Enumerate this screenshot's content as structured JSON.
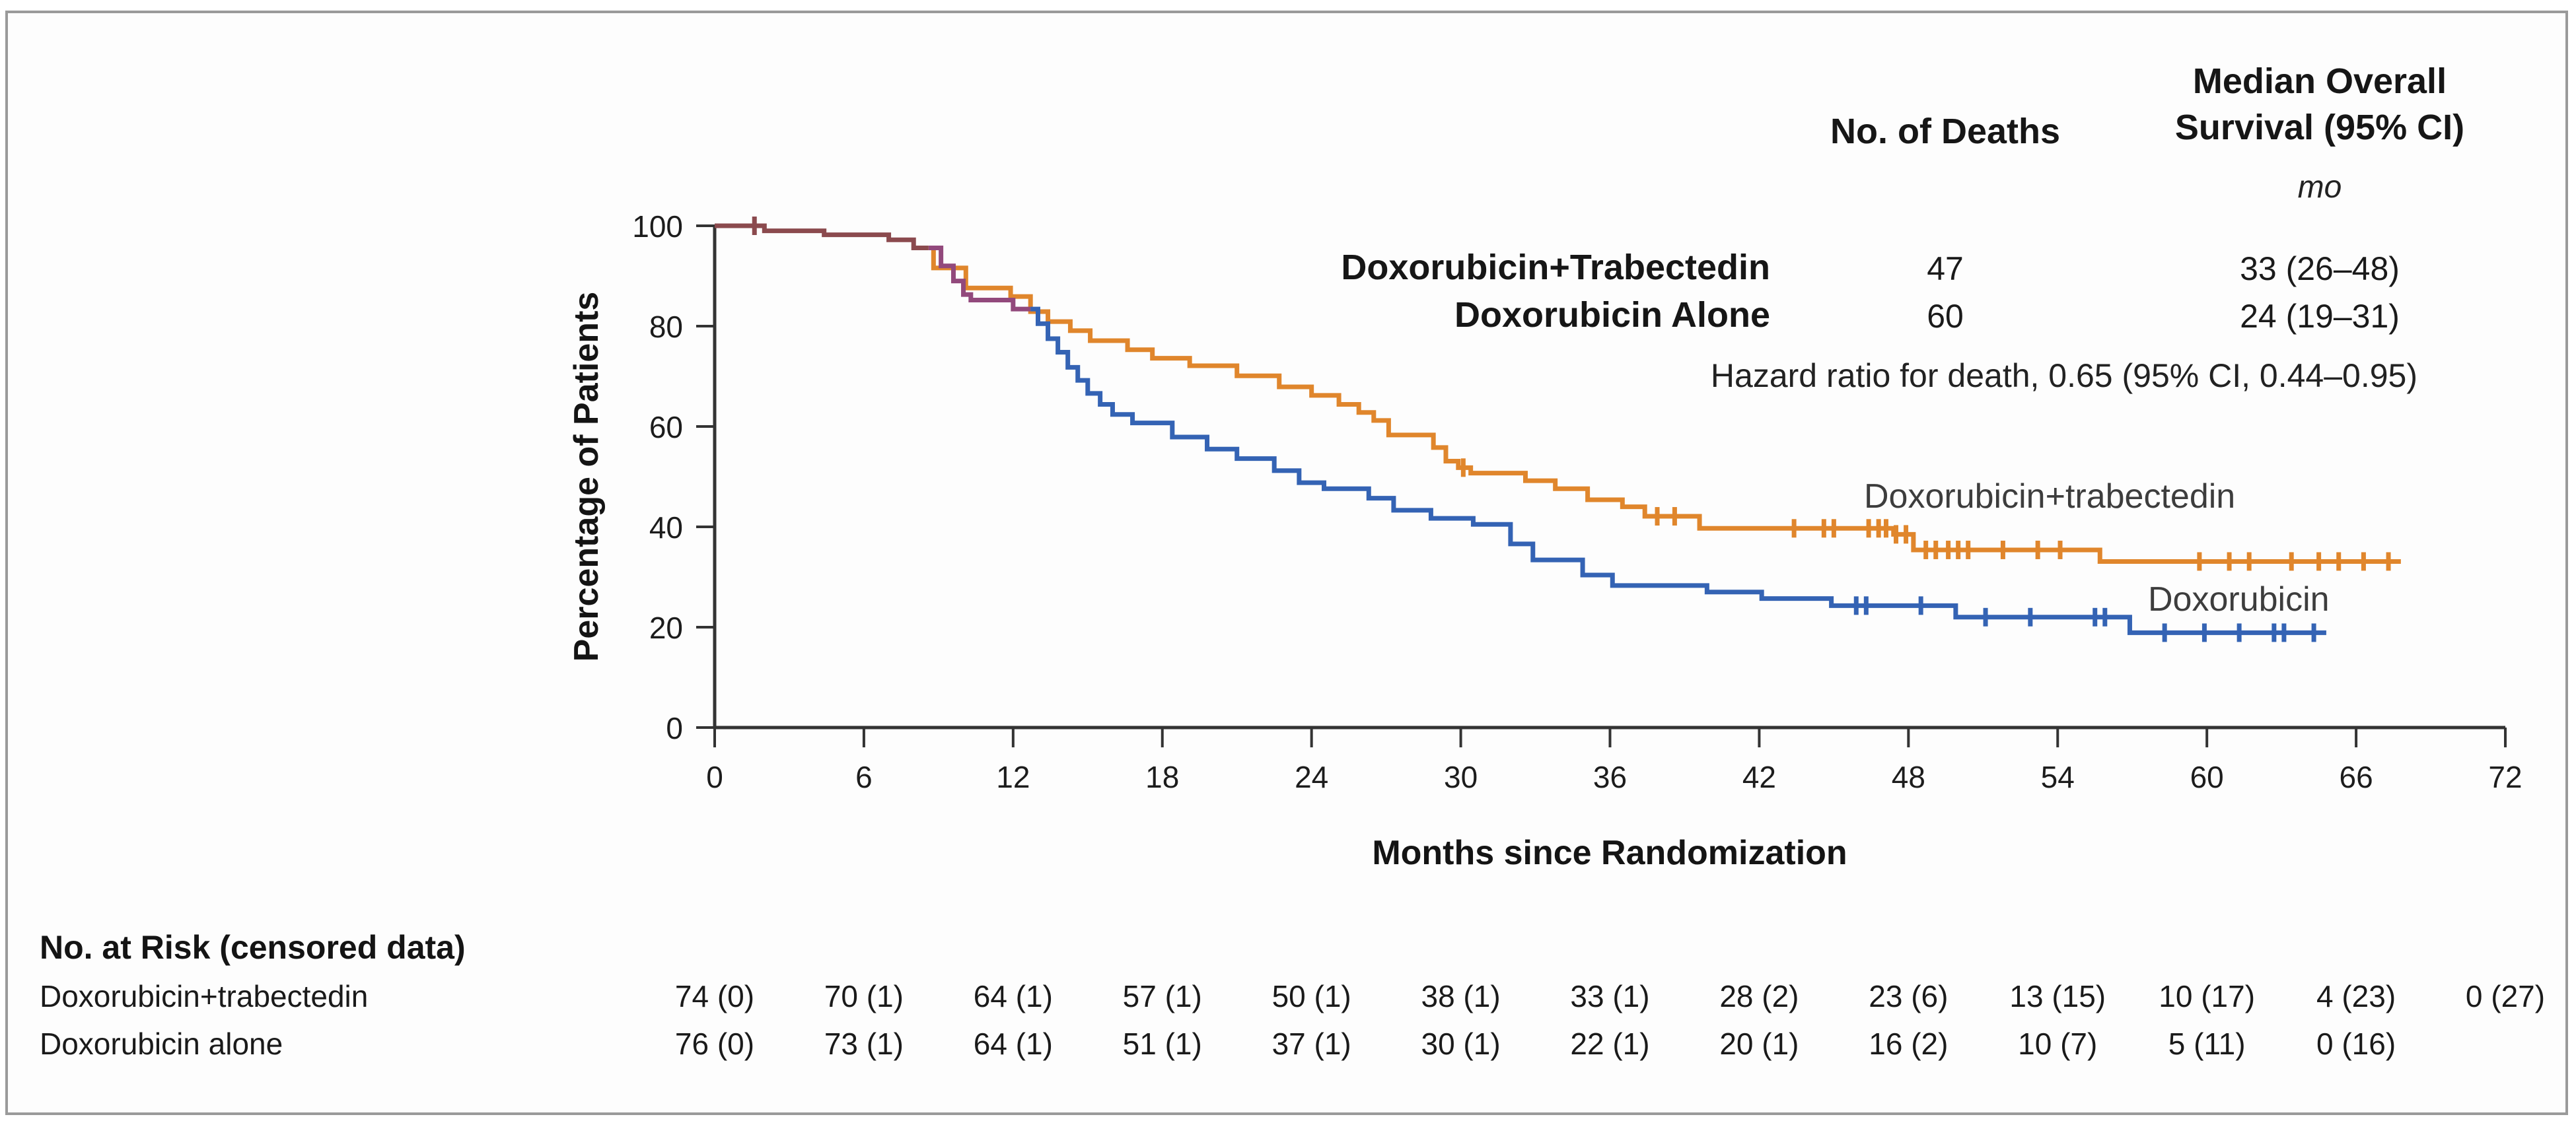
{
  "figure": {
    "header": {
      "deaths_col": "No. of Deaths",
      "median_col_line1": "Median Overall",
      "median_col_line2": "Survival (95% CI)",
      "median_unit": "mo"
    },
    "legend_rows": [
      {
        "label": "Doxorubicin+Trabectedin",
        "deaths": "47",
        "median": "33 (26–48)"
      },
      {
        "label": "Doxorubicin Alone",
        "deaths": "60",
        "median": "24 (19–31)"
      }
    ],
    "hazard_text": "Hazard ratio for death, 0.65 (95% CI, 0.44–0.95)",
    "curve_labels": {
      "trabectedin": "Doxorubicin+trabectedin",
      "doxorubicin": "Doxorubicin"
    }
  },
  "chart_data": {
    "type": "line",
    "subtype": "kaplan-meier-step",
    "title": "",
    "xlabel": "Months since Randomization",
    "ylabel": "Percentage of Patients",
    "xlim": [
      0,
      72
    ],
    "ylim": [
      0,
      100
    ],
    "x_ticks": [
      0,
      6,
      12,
      18,
      24,
      30,
      36,
      42,
      48,
      54,
      60,
      66,
      72
    ],
    "y_ticks": [
      0,
      20,
      40,
      60,
      80,
      100
    ],
    "grid": false,
    "note": "Both curves overlap from month 0 to ~8.6 (drawn as one dark line); censor marks shown as ticks on curves",
    "axis_color": "#333333",
    "series": [
      {
        "name": "Doxorubicin+trabectedin",
        "color": "#E0862C",
        "segments": [
          {
            "color": "#8B4A4E",
            "points": [
              [
                0,
                100
              ],
              [
                2,
                99
              ],
              [
                4.4,
                98.2
              ],
              [
                7,
                97.2
              ],
              [
                8,
                95.6
              ],
              [
                8.6,
                95.6
              ]
            ]
          },
          {
            "color": "#E0862C",
            "points": [
              [
                8.6,
                95.6
              ],
              [
                8.8,
                91.6
              ],
              [
                10.1,
                87.6
              ],
              [
                11.9,
                85.9
              ],
              [
                12.7,
                82.9
              ],
              [
                13.4,
                80.9
              ],
              [
                14.3,
                79.1
              ],
              [
                15.1,
                77.1
              ],
              [
                16.6,
                75.3
              ],
              [
                17.6,
                73.6
              ],
              [
                19.1,
                72.1
              ],
              [
                21,
                70.1
              ],
              [
                22.7,
                67.9
              ],
              [
                24,
                66.2
              ],
              [
                25.1,
                64.4
              ],
              [
                25.9,
                62.8
              ],
              [
                26.5,
                61.2
              ],
              [
                27.1,
                58.3
              ],
              [
                28.9,
                55.8
              ],
              [
                29.4,
                53.1
              ],
              [
                29.9,
                51.8
              ],
              [
                30.4,
                50.7
              ],
              [
                32.6,
                49.2
              ],
              [
                33.8,
                47.6
              ],
              [
                35.1,
                45.4
              ],
              [
                36.5,
                44
              ],
              [
                37.4,
                42.1
              ],
              [
                39.6,
                39.7
              ],
              [
                47.4,
                38.5
              ],
              [
                48.2,
                35.4
              ],
              [
                55.7,
                33.1
              ],
              [
                67.8,
                33.1
              ]
            ]
          }
        ],
        "censor_months": [
          1.6,
          30.1,
          37.9,
          38.6,
          43.4,
          44.6,
          45,
          46.4,
          46.8,
          47.1,
          47.5,
          47.9,
          48.7,
          49.1,
          49.6,
          50,
          50.4,
          51.8,
          53.2,
          54.1,
          59.7,
          60.9,
          61.7,
          63.4,
          64.5,
          65.3,
          66.3,
          67.3
        ]
      },
      {
        "name": "Doxorubicin alone",
        "color": "#3463B4",
        "segments": [
          {
            "color": "#92497C",
            "points": [
              [
                8.6,
                95.6
              ],
              [
                9.1,
                92
              ],
              [
                9.6,
                89
              ],
              [
                10,
                86.3
              ],
              [
                10.3,
                85.2
              ],
              [
                12,
                83.4
              ],
              [
                12.7,
                83.4
              ]
            ]
          },
          {
            "color": "#3463B4",
            "points": [
              [
                12.7,
                83.4
              ],
              [
                13,
                80.5
              ],
              [
                13.4,
                77.5
              ],
              [
                13.8,
                74.8
              ],
              [
                14.2,
                71.8
              ],
              [
                14.6,
                69.2
              ],
              [
                15,
                66.6
              ],
              [
                15.5,
                64.4
              ],
              [
                16,
                62.4
              ],
              [
                16.8,
                60.7
              ],
              [
                18.4,
                57.9
              ],
              [
                19.8,
                55.5
              ],
              [
                21,
                53.6
              ],
              [
                22.5,
                51.2
              ],
              [
                23.5,
                48.8
              ],
              [
                24.5,
                47.6
              ],
              [
                26.3,
                45.7
              ],
              [
                27.3,
                43.3
              ],
              [
                28.8,
                41.7
              ],
              [
                30.5,
                40.5
              ],
              [
                32,
                36.6
              ],
              [
                32.9,
                33.4
              ],
              [
                34.9,
                30.4
              ],
              [
                36.1,
                28.3
              ],
              [
                39.9,
                27
              ],
              [
                42.1,
                25.7
              ],
              [
                44.9,
                24.3
              ],
              [
                49.9,
                22
              ],
              [
                56.9,
                18.9
              ],
              [
                64.8,
                18.9
              ]
            ]
          }
        ],
        "censor_months": [
          45.9,
          46.3,
          48.5,
          51.1,
          52.9,
          55.5,
          55.9,
          58.3,
          59.9,
          61.3,
          62.7,
          63.1,
          64.3
        ]
      }
    ]
  },
  "risk_table": {
    "title": "No. at Risk (censored data)",
    "rows": [
      {
        "label": "Doxorubicin+trabectedin",
        "values": [
          "74 (0)",
          "70 (1)",
          "64 (1)",
          "57 (1)",
          "50 (1)",
          "38 (1)",
          "33 (1)",
          "28 (2)",
          "23 (6)",
          "13 (15)",
          "10 (17)",
          "4 (23)",
          "0 (27)"
        ]
      },
      {
        "label": "Doxorubicin alone",
        "values": [
          "76 (0)",
          "73 (1)",
          "64 (1)",
          "51 (1)",
          "37 (1)",
          "30 (1)",
          "22 (1)",
          "20 (1)",
          "16 (2)",
          "10 (7)",
          "5 (11)",
          "0 (16)"
        ]
      }
    ]
  }
}
